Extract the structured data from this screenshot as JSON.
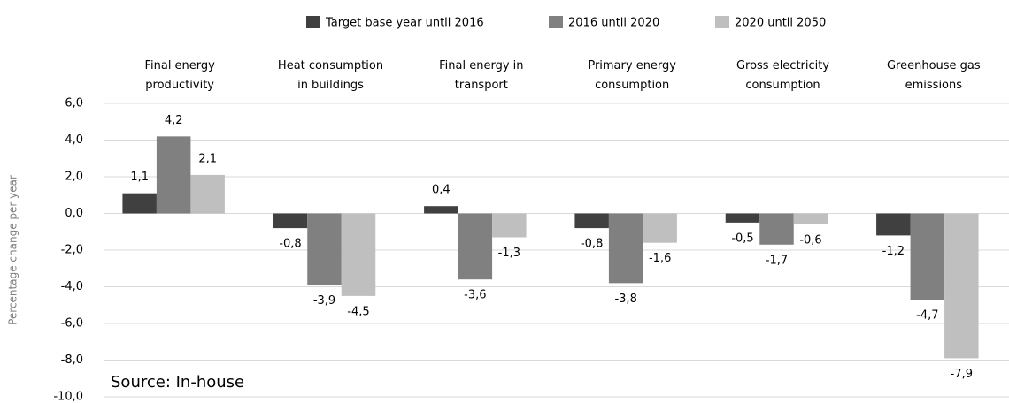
{
  "chart_data": {
    "type": "bar",
    "y_label": "Percentage change per year",
    "source": "Source: In-house",
    "categories": [
      "Final energy\nproductivity",
      "Heat consumption\nin buildings",
      "Final energy in\ntransport",
      "Primary energy\nconsumption",
      "Gross electricity\nconsumption",
      "Greenhouse gas\nemissions"
    ],
    "series": [
      {
        "name": "Target base year until 2016",
        "color": "#404040",
        "values": [
          1.1,
          -0.8,
          0.4,
          -0.8,
          -0.5,
          -1.2
        ],
        "value_labels": [
          "1,1",
          "-0,8",
          "0,4",
          "-0,8",
          "-0,5",
          "-1,2"
        ]
      },
      {
        "name": "2016 until 2020",
        "color": "#808080",
        "values": [
          4.2,
          -3.9,
          -3.6,
          -3.8,
          -1.7,
          -4.7
        ],
        "value_labels": [
          "4,2",
          "-3,9",
          "-3,6",
          "-3,8",
          "-1,7",
          "-4,7"
        ]
      },
      {
        "name": "2020 until 2050",
        "color": "#bfbfbf",
        "values": [
          2.1,
          -4.5,
          -1.3,
          -1.6,
          -0.6,
          -7.9
        ],
        "value_labels": [
          "2,1",
          "-4,5",
          "-1,3",
          "-1,6",
          "-0,6",
          "-7,9"
        ]
      }
    ],
    "ylim": [
      -10,
      6
    ],
    "yticks": [
      {
        "value": -10,
        "label": "-10,0"
      },
      {
        "value": -8,
        "label": "-8,0"
      },
      {
        "value": -6,
        "label": "-6,0"
      },
      {
        "value": -4,
        "label": "-4,0"
      },
      {
        "value": -2,
        "label": "-2,0"
      },
      {
        "value": 0,
        "label": "0,0"
      },
      {
        "value": 2,
        "label": "2,0"
      },
      {
        "value": 4,
        "label": "4,0"
      },
      {
        "value": 6,
        "label": "6,0"
      }
    ],
    "grid": true
  }
}
